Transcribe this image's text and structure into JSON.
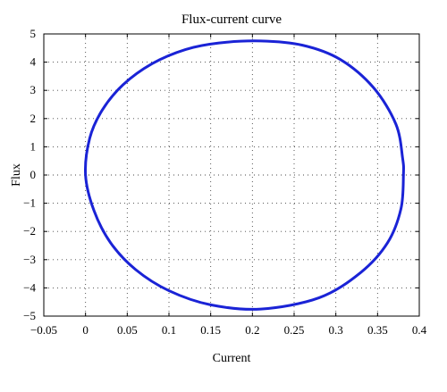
{
  "chart_data": {
    "type": "line",
    "title": "Flux-current curve",
    "xlabel": "Current",
    "ylabel": "Flux",
    "xlim": [
      -0.05,
      0.4
    ],
    "ylim": [
      -5,
      5
    ],
    "x_ticks": [
      -0.05,
      0,
      0.05,
      0.1,
      0.15,
      0.2,
      0.25,
      0.3,
      0.35,
      0.4
    ],
    "y_ticks": [
      -5,
      -4,
      -3,
      -2,
      -1,
      0,
      1,
      2,
      3,
      4,
      5
    ],
    "x_tick_labels": [
      "−0.05",
      "0",
      "0.05",
      "0.1",
      "0.15",
      "0.2",
      "0.25",
      "0.3",
      "0.35",
      "0.4"
    ],
    "y_tick_labels": [
      "−5",
      "−4",
      "−3",
      "−2",
      "−1",
      "0",
      "1",
      "2",
      "3",
      "4",
      "5"
    ],
    "grid": true,
    "series": [
      {
        "color": "#1a23d6",
        "points": [
          [
            0.0,
            0.0
          ],
          [
            0.005,
            1.3
          ],
          [
            0.02,
            2.3
          ],
          [
            0.045,
            3.2
          ],
          [
            0.08,
            3.95
          ],
          [
            0.12,
            4.45
          ],
          [
            0.16,
            4.68
          ],
          [
            0.21,
            4.75
          ],
          [
            0.26,
            4.6
          ],
          [
            0.305,
            4.1
          ],
          [
            0.345,
            3.1
          ],
          [
            0.372,
            1.8
          ],
          [
            0.38,
            0.6
          ],
          [
            0.381,
            0.0
          ],
          [
            0.378,
            -1.2
          ],
          [
            0.362,
            -2.4
          ],
          [
            0.33,
            -3.45
          ],
          [
            0.28,
            -4.35
          ],
          [
            0.21,
            -4.75
          ],
          [
            0.15,
            -4.6
          ],
          [
            0.1,
            -4.1
          ],
          [
            0.06,
            -3.35
          ],
          [
            0.03,
            -2.4
          ],
          [
            0.01,
            -1.25
          ],
          [
            0.0,
            0.0
          ]
        ]
      }
    ]
  }
}
